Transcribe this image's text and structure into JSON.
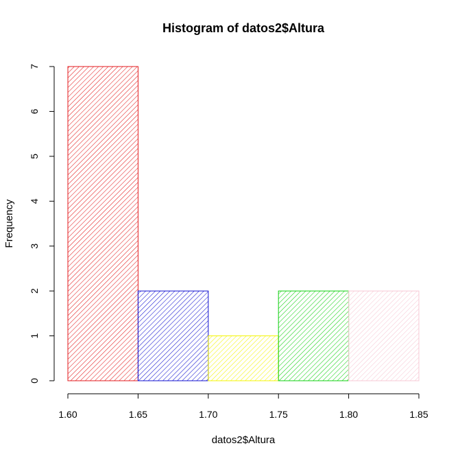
{
  "chart_data": {
    "type": "bar",
    "title": "Histogram of datos2$Altura",
    "xlabel": "datos2$Altura",
    "ylabel": "Frequency",
    "bins": [
      {
        "from": 1.6,
        "to": 1.65,
        "count": 7,
        "color": "#e31a1c"
      },
      {
        "from": 1.65,
        "to": 1.7,
        "count": 2,
        "color": "#1010d0"
      },
      {
        "from": 1.7,
        "to": 1.75,
        "count": 1,
        "color": "#f4f400"
      },
      {
        "from": 1.75,
        "to": 1.8,
        "count": 2,
        "color": "#10d010"
      },
      {
        "from": 1.8,
        "to": 1.85,
        "count": 2,
        "color": "#f7c8d4"
      }
    ],
    "xlim": [
      1.6,
      1.85
    ],
    "ylim": [
      0,
      7
    ],
    "x_ticks": [
      "1.60",
      "1.65",
      "1.70",
      "1.75",
      "1.80",
      "1.85"
    ],
    "y_ticks": [
      "0",
      "1",
      "2",
      "3",
      "4",
      "5",
      "6",
      "7"
    ],
    "fill_pattern": "diagonal-hatch",
    "grid": false
  }
}
